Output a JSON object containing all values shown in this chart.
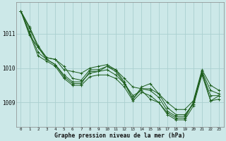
{
  "title": "Graphe pression niveau de la mer (hPa)",
  "bg_color": "#cce8e8",
  "grid_color": "#aacfcf",
  "line_color": "#1a5c1a",
  "xlim_min": -0.5,
  "xlim_max": 23.5,
  "ylim_min": 1008.3,
  "ylim_max": 1011.9,
  "yticks": [
    1009,
    1010,
    1011
  ],
  "xticks": [
    0,
    1,
    2,
    3,
    4,
    5,
    6,
    7,
    8,
    9,
    10,
    11,
    12,
    13,
    14,
    15,
    16,
    17,
    18,
    19,
    20,
    21,
    22,
    23
  ],
  "series": [
    [
      1011.65,
      1011.2,
      1010.65,
      1010.3,
      1010.25,
      1010.05,
      1009.7,
      1009.65,
      1009.95,
      1009.95,
      1010.05,
      1009.95,
      1009.6,
      1009.1,
      1009.45,
      1009.55,
      1009.25,
      1008.85,
      1008.65,
      1008.65,
      1008.95,
      1009.9,
      1009.35,
      1009.25
    ],
    [
      1011.65,
      1011.15,
      1010.6,
      1010.25,
      1010.1,
      1009.8,
      1009.6,
      1009.6,
      1009.85,
      1009.9,
      1009.95,
      1009.8,
      1009.55,
      1009.1,
      1009.4,
      1009.35,
      1009.15,
      1008.75,
      1008.6,
      1008.6,
      1009.0,
      1009.85,
      1009.2,
      1009.2
    ],
    [
      1011.65,
      1011.05,
      1010.45,
      1010.25,
      1010.1,
      1009.75,
      1009.55,
      1009.55,
      1009.9,
      1009.9,
      1010.05,
      1009.9,
      1009.55,
      1009.2,
      1009.35,
      1009.1,
      1009.0,
      1008.7,
      1008.55,
      1008.55,
      1009.0,
      1009.9,
      1009.05,
      1009.2
    ],
    [
      1011.65,
      1011.0,
      1010.35,
      1010.2,
      1010.05,
      1009.7,
      1009.5,
      1009.5,
      1009.75,
      1009.8,
      1009.8,
      1009.7,
      1009.45,
      1009.05,
      1009.3,
      1009.2,
      1009.0,
      1008.65,
      1008.5,
      1008.5,
      1008.9,
      1009.8,
      1009.05,
      1009.1
    ]
  ],
  "extra_series": [
    [
      1011.65,
      1010.95,
      1010.6,
      1010.3,
      1010.25,
      1009.95,
      1009.9,
      1009.85,
      1010.0,
      1010.05,
      1010.1,
      1009.95,
      1009.7,
      1009.45,
      1009.4,
      1009.4,
      1009.25,
      1009.0,
      1008.8,
      1008.8,
      1009.05,
      1009.95,
      1009.5,
      1009.35
    ]
  ]
}
